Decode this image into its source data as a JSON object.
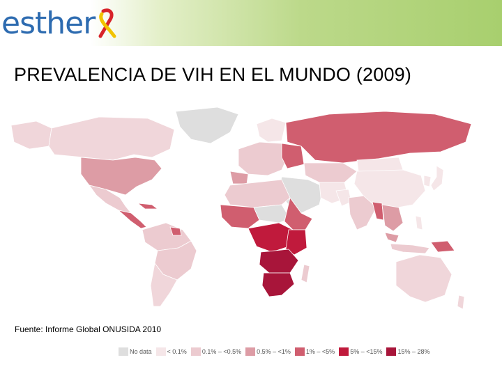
{
  "logo": {
    "text": "esther"
  },
  "title": "PREVALENCIA DE VIH EN EL MUNDO (2009)",
  "source": "Fuente: Informe Global ONUSIDA 2010",
  "colors": {
    "no_data": "#dedede",
    "lt_0_1": "#f5e6e8",
    "c_0_1_0_5": "#eccbd0",
    "c_0_5_1": "#dd9ca5",
    "c_1_5": "#d05e6f",
    "c_5_15": "#c01a3c",
    "c_15_28": "#a8153a"
  },
  "legend": [
    {
      "label": "No data",
      "color": "#dedede"
    },
    {
      "label": "< 0.1%",
      "color": "#f5e6e8"
    },
    {
      "label": "0.1% – <0.5%",
      "color": "#eccbd0"
    },
    {
      "label": "0.5% – <1%",
      "color": "#dd9ca5"
    },
    {
      "label": "1% – <5%",
      "color": "#d05e6f"
    },
    {
      "label": "5% – <15%",
      "color": "#c01a3c"
    },
    {
      "label": "15% – 28%",
      "color": "#a8153a"
    }
  ]
}
